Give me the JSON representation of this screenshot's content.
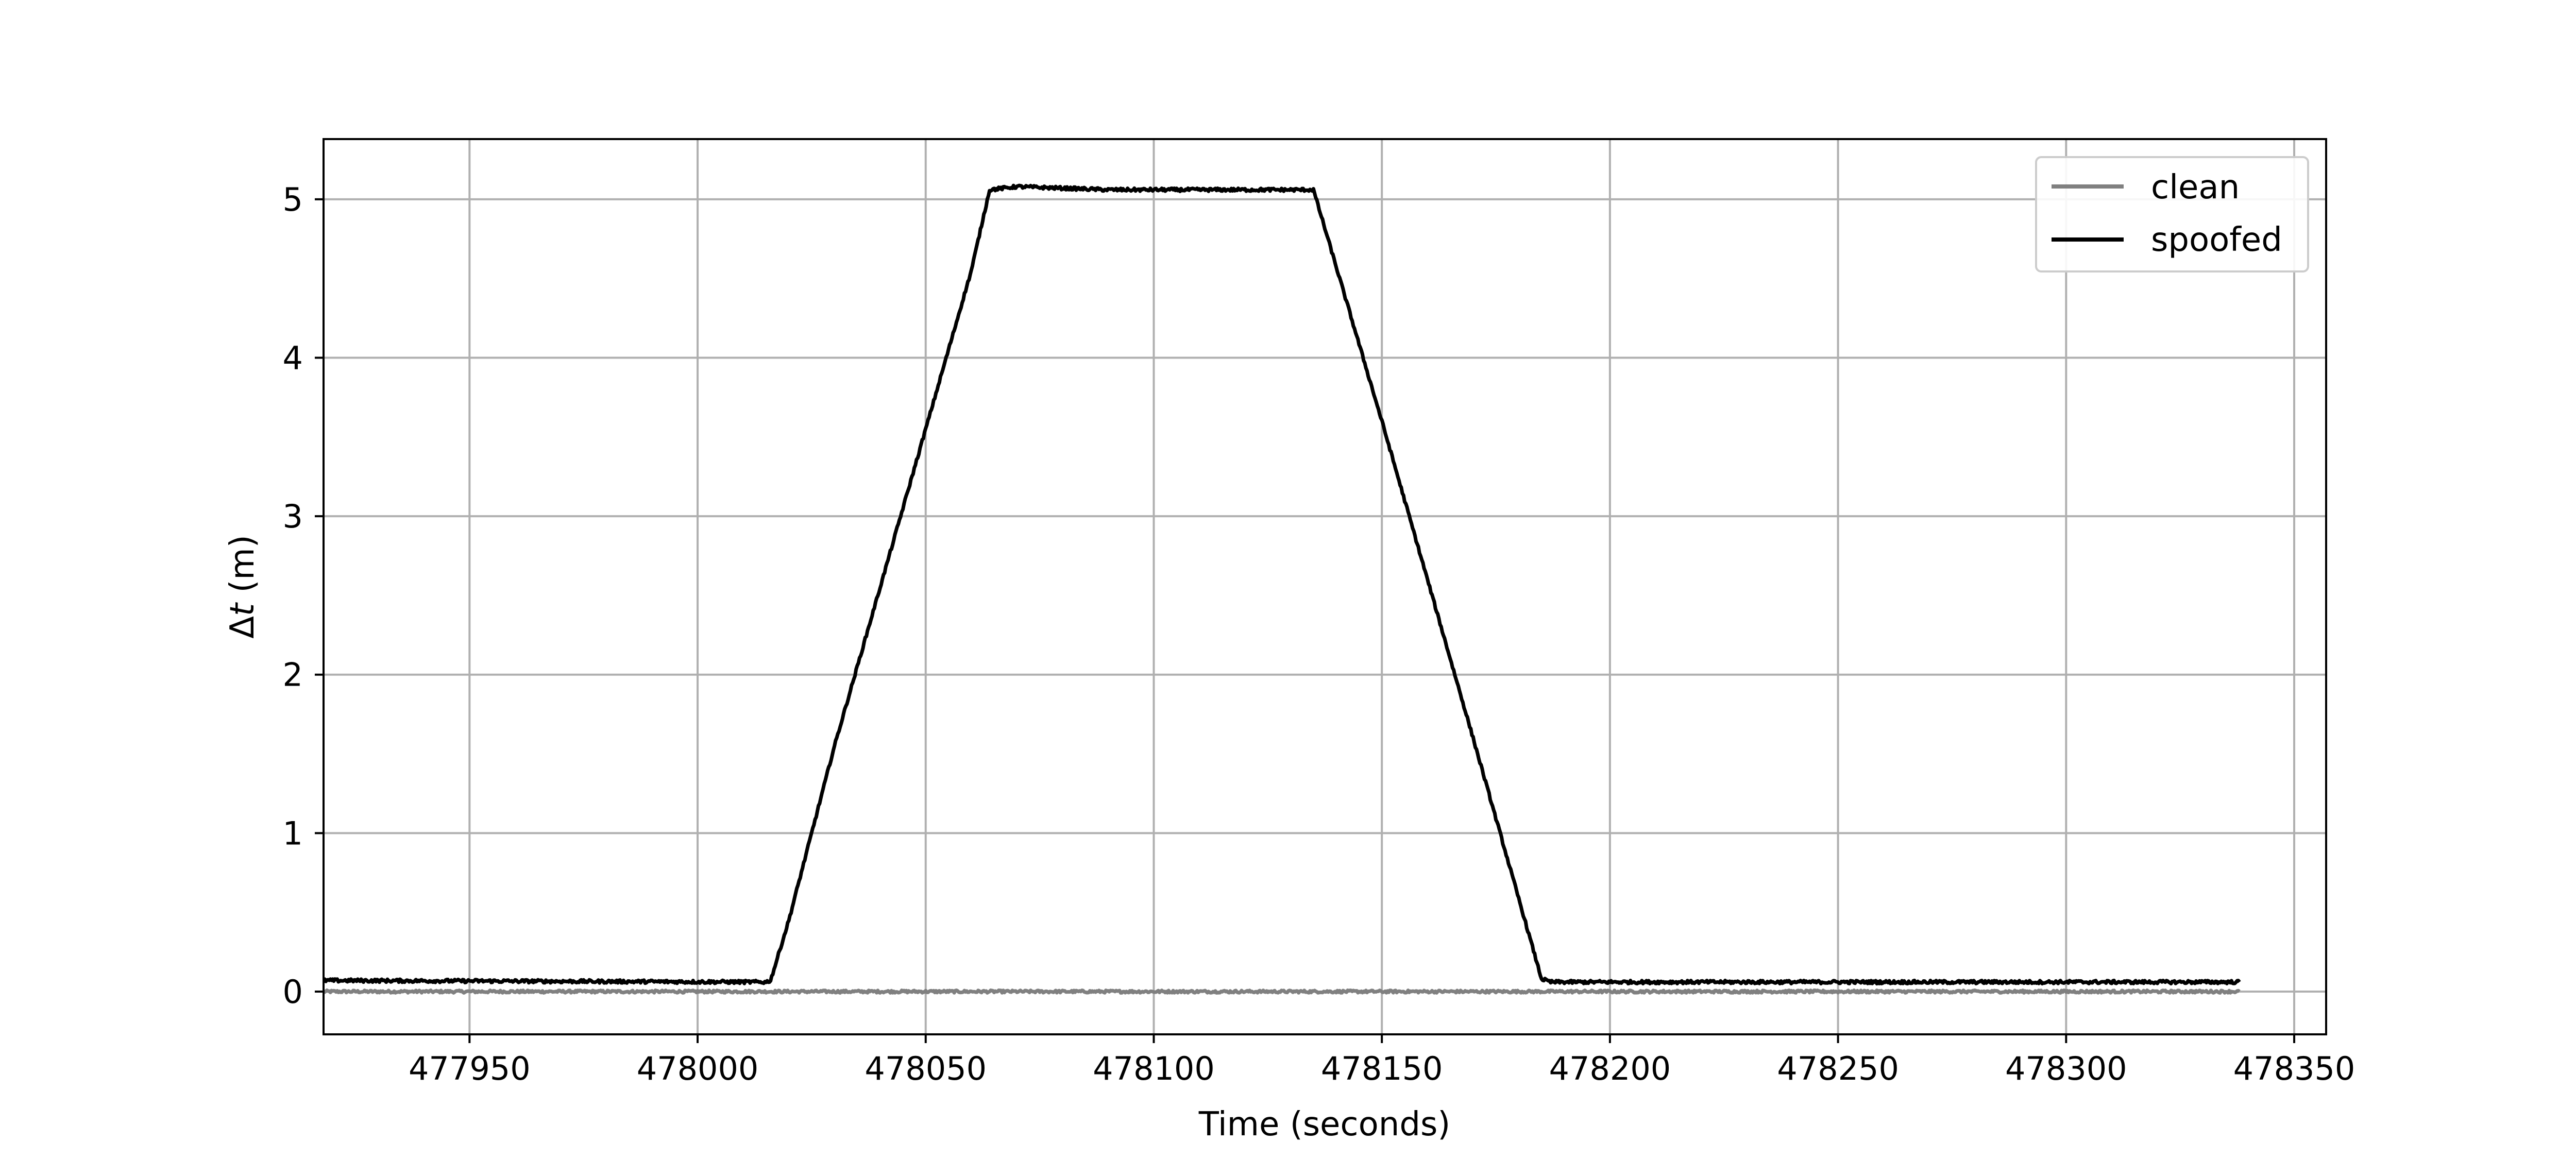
{
  "chart_data": {
    "type": "line",
    "title": "",
    "xlabel": "Time (seconds)",
    "ylabel_prefix": "Δ",
    "ylabel_var": "t",
    "ylabel_suffix": " (m)",
    "xlim": [
      477918,
      478357
    ],
    "ylim": [
      -0.27,
      5.38
    ],
    "xticks": [
      477950,
      478000,
      478050,
      478100,
      478150,
      478200,
      478250,
      478300,
      478350
    ],
    "xtick_labels": [
      "477950",
      "478000",
      "478050",
      "478100",
      "478150",
      "478200",
      "478250",
      "478300",
      "478350"
    ],
    "yticks": [
      0,
      1,
      2,
      3,
      4,
      5
    ],
    "ytick_labels": [
      "0",
      "1",
      "2",
      "3",
      "4",
      "5"
    ],
    "grid": true,
    "legend_position": "top-right",
    "series": [
      {
        "name": "clean",
        "color": "#808080",
        "x": [
          477918,
          478338
        ],
        "y": [
          0.0,
          0.0
        ],
        "noise": 0.008
      },
      {
        "name": "spoofed",
        "color": "#000000",
        "x": [
          477918,
          478015,
          478016,
          478020,
          478030,
          478040,
          478050,
          478060,
          478064,
          478070,
          478080,
          478090,
          478100,
          478120,
          478135,
          478150,
          478160,
          478170,
          478185,
          478187,
          478200,
          478250,
          478300,
          478338
        ],
        "y": [
          0.07,
          0.06,
          0.07,
          0.45,
          1.55,
          2.55,
          3.55,
          4.55,
          5.06,
          5.08,
          5.07,
          5.06,
          5.06,
          5.06,
          5.06,
          3.6,
          2.6,
          1.6,
          0.08,
          0.06,
          0.06,
          0.06,
          0.06,
          0.06
        ],
        "noise": 0.01
      }
    ]
  }
}
